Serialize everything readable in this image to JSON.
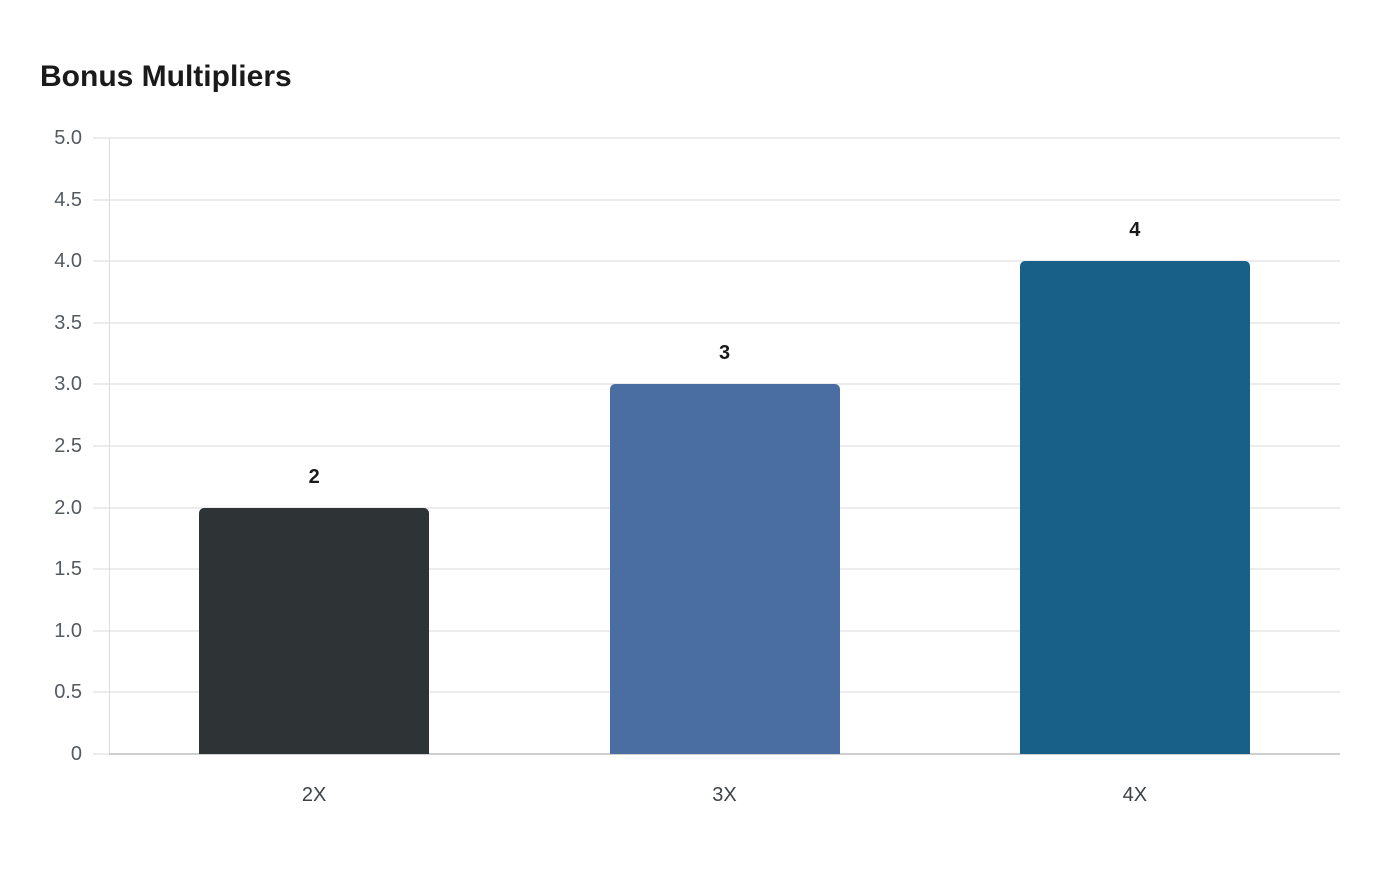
{
  "title": "Bonus Multipliers",
  "y_ticks": [
    "0",
    "0.5",
    "1.0",
    "1.5",
    "2.0",
    "2.5",
    "3.0",
    "3.5",
    "4.0",
    "4.5",
    "5.0"
  ],
  "bars": [
    {
      "category": "2X",
      "value": 2,
      "label": "2",
      "color": "#2e3436"
    },
    {
      "category": "3X",
      "value": 3,
      "label": "3",
      "color": "#4a6da2"
    },
    {
      "category": "4X",
      "value": 4,
      "label": "4",
      "color": "#186088"
    }
  ],
  "chart_data": {
    "type": "bar",
    "title": "Bonus Multipliers",
    "categories": [
      "2X",
      "3X",
      "4X"
    ],
    "values": [
      2,
      3,
      4
    ],
    "data_labels": [
      "2",
      "3",
      "4"
    ],
    "colors": [
      "#2e3436",
      "#4a6da2",
      "#186088"
    ],
    "xlabel": "",
    "ylabel": "",
    "ylim": [
      0,
      5
    ],
    "yticks": [
      0,
      0.5,
      1.0,
      1.5,
      2.0,
      2.5,
      3.0,
      3.5,
      4.0,
      4.5,
      5.0
    ],
    "grid": true,
    "legend": "none"
  }
}
